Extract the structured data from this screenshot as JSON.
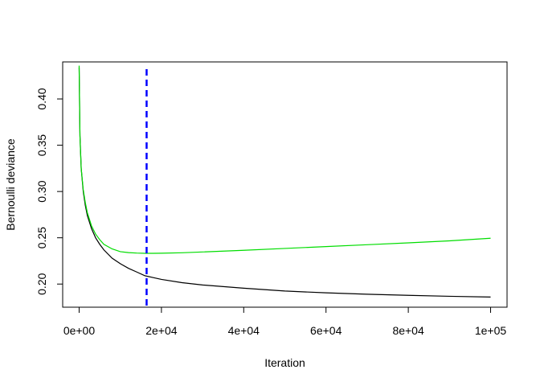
{
  "chart_data": {
    "type": "line",
    "title": "",
    "xlabel": "Iteration",
    "ylabel": "Bernoulli deviance",
    "xlim": [
      -4000,
      104000
    ],
    "ylim": [
      0.175,
      0.44
    ],
    "grid": false,
    "x_ticks": [
      0,
      20000,
      40000,
      60000,
      80000,
      100000
    ],
    "x_tick_labels": [
      "0e+00",
      "2e+04",
      "4e+04",
      "6e+04",
      "8e+04",
      "1e+05"
    ],
    "y_ticks": [
      0.2,
      0.25,
      0.3,
      0.35,
      0.4
    ],
    "y_tick_labels": [
      "0.20",
      "0.25",
      "0.30",
      "0.35",
      "0.40"
    ],
    "series": [
      {
        "color": "#000000",
        "x": [
          0,
          200,
          500,
          1000,
          1500,
          2000,
          3000,
          4000,
          5000,
          6000,
          8000,
          10000,
          12000,
          14000,
          16000,
          18000,
          20000,
          25000,
          30000,
          40000,
          50000,
          60000,
          70000,
          80000,
          90000,
          100000
        ],
        "y": [
          0.434,
          0.36,
          0.325,
          0.3,
          0.285,
          0.274,
          0.26,
          0.25,
          0.243,
          0.237,
          0.228,
          0.222,
          0.217,
          0.213,
          0.209,
          0.207,
          0.205,
          0.2015,
          0.199,
          0.1955,
          0.1925,
          0.1905,
          0.189,
          0.1878,
          0.1868,
          0.186
        ]
      },
      {
        "color": "#00dd00",
        "x": [
          0,
          200,
          500,
          1000,
          1500,
          2000,
          3000,
          4000,
          5000,
          6000,
          8000,
          10000,
          12000,
          14000,
          16000,
          18000,
          20000,
          25000,
          30000,
          40000,
          50000,
          60000,
          70000,
          80000,
          90000,
          100000
        ],
        "y": [
          0.436,
          0.36,
          0.325,
          0.302,
          0.288,
          0.277,
          0.263,
          0.254,
          0.248,
          0.243,
          0.238,
          0.235,
          0.234,
          0.2335,
          0.2332,
          0.2332,
          0.2333,
          0.2338,
          0.2347,
          0.2365,
          0.2385,
          0.2405,
          0.2425,
          0.2445,
          0.2467,
          0.2495
        ]
      }
    ],
    "vline": {
      "x": 16400,
      "color": "#0000ff",
      "style": "dashed"
    }
  }
}
